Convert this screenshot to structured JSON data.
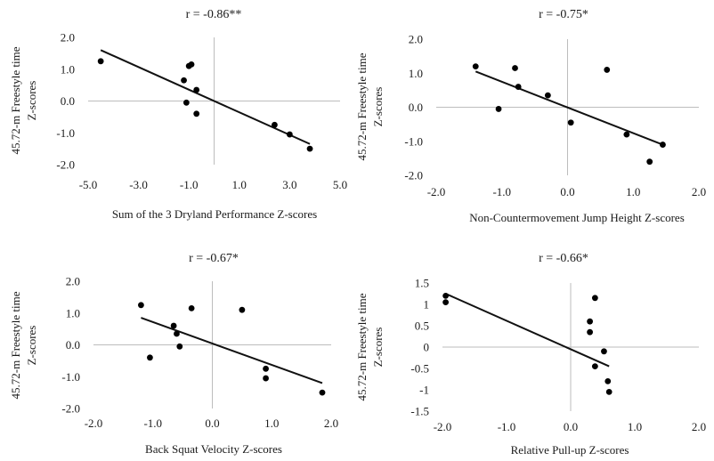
{
  "chart_data": [
    {
      "type": "scatter",
      "title": "r = -0.86**",
      "xlabel": "Sum of the 3 Dryland Performance Z-scores",
      "ylabel_lines": [
        "45.72-m Freestyle time",
        "Z-scores"
      ],
      "xlim": [
        -5.0,
        5.0
      ],
      "ylim": [
        -2.0,
        2.0
      ],
      "xticks": [
        "-5.0",
        "-3.0",
        "-1.0",
        "1.0",
        "3.0",
        "5.0"
      ],
      "xtick_values": [
        -5,
        -3,
        -1,
        1,
        3,
        5
      ],
      "yticks": [
        "2.0",
        "1.0",
        "0.0",
        "-1.0",
        "-2.0"
      ],
      "ytick_values": [
        2,
        1,
        0,
        -1,
        -2
      ],
      "points": [
        [
          -4.5,
          1.25
        ],
        [
          -1.2,
          0.65
        ],
        [
          -1.0,
          1.1
        ],
        [
          -0.9,
          1.15
        ],
        [
          -0.7,
          0.35
        ],
        [
          -1.1,
          -0.05
        ],
        [
          -0.7,
          -0.4
        ],
        [
          2.4,
          -0.75
        ],
        [
          3.0,
          -1.05
        ],
        [
          3.8,
          -1.5
        ]
      ],
      "trendline": [
        [
          -4.5,
          1.6
        ],
        [
          3.8,
          -1.35
        ]
      ],
      "grid": false
    },
    {
      "type": "scatter",
      "title": "r = -0.75*",
      "xlabel": "Non-Countermovement Jump Height Z-scores",
      "ylabel_lines": [
        "45.72-m Freestyle time",
        "Z-scores"
      ],
      "xlim": [
        -2.0,
        2.0
      ],
      "ylim": [
        -2.0,
        2.0
      ],
      "xticks": [
        "-2.0",
        "-1.0",
        "0.0",
        "1.0",
        "2.0"
      ],
      "xtick_values": [
        -2,
        -1,
        0,
        1,
        2
      ],
      "yticks": [
        "2.0",
        "1.0",
        "0.0",
        "-1.0",
        "-2.0"
      ],
      "ytick_values": [
        2,
        1,
        0,
        -1,
        -2
      ],
      "points": [
        [
          -1.4,
          1.2
        ],
        [
          -0.8,
          1.15
        ],
        [
          -0.75,
          0.6
        ],
        [
          -1.05,
          -0.05
        ],
        [
          -0.3,
          0.35
        ],
        [
          0.05,
          -0.45
        ],
        [
          0.6,
          1.1
        ],
        [
          0.9,
          -0.8
        ],
        [
          1.25,
          -1.6
        ],
        [
          1.45,
          -1.1
        ]
      ],
      "trendline": [
        [
          -1.4,
          1.05
        ],
        [
          1.45,
          -1.1
        ]
      ],
      "grid": false
    },
    {
      "type": "scatter",
      "title": "r = -0.67*",
      "xlabel": "Back Squat Velocity Z-scores",
      "ylabel_lines": [
        "45.72-m Freestyle time",
        "Z-scores"
      ],
      "xlim": [
        -2.0,
        2.0
      ],
      "ylim": [
        -2.0,
        2.0
      ],
      "xticks": [
        "-2.0",
        "-1.0",
        "0.0",
        "1.0",
        "2.0"
      ],
      "xtick_values": [
        -2,
        -1,
        0,
        1,
        2
      ],
      "yticks": [
        "2.0",
        "1.0",
        "0.0",
        "-1.0",
        "-2.0"
      ],
      "ytick_values": [
        2,
        1,
        0,
        -1,
        -2
      ],
      "points": [
        [
          -1.2,
          1.25
        ],
        [
          -0.65,
          0.6
        ],
        [
          -0.35,
          1.15
        ],
        [
          -0.6,
          0.35
        ],
        [
          -0.55,
          -0.05
        ],
        [
          -1.05,
          -0.4
        ],
        [
          0.5,
          1.1
        ],
        [
          0.9,
          -0.75
        ],
        [
          0.9,
          -1.05
        ],
        [
          1.85,
          -1.5
        ]
      ],
      "trendline": [
        [
          -1.2,
          0.85
        ],
        [
          1.85,
          -1.2
        ]
      ],
      "grid": false
    },
    {
      "type": "scatter",
      "title": "r = -0.66*",
      "xlabel": "Relative Pull-up Z-scores",
      "ylabel_lines": [
        "45.72-m Freestyle time",
        "Z-scores"
      ],
      "xlim": [
        -2.0,
        2.0
      ],
      "ylim": [
        -1.5,
        1.5
      ],
      "xticks": [
        "-2.0",
        "-1.0",
        "0.0",
        "1.0",
        "2.0"
      ],
      "xtick_values": [
        -2,
        -1,
        0,
        1,
        2
      ],
      "yticks": [
        "1.5",
        "1",
        "0.5",
        "0",
        "-0.5",
        "-1",
        "-1.5"
      ],
      "ytick_values": [
        1.5,
        1,
        0.5,
        0,
        -0.5,
        -1,
        -1.5
      ],
      "points": [
        [
          -1.95,
          1.2
        ],
        [
          -1.95,
          1.05
        ],
        [
          0.3,
          0.6
        ],
        [
          0.3,
          0.35
        ],
        [
          0.38,
          1.15
        ],
        [
          0.38,
          -0.45
        ],
        [
          0.52,
          -0.1
        ],
        [
          0.58,
          -0.8
        ],
        [
          0.6,
          -1.05
        ]
      ],
      "trendline": [
        [
          -1.95,
          1.25
        ],
        [
          0.6,
          -0.45
        ]
      ],
      "grid": false
    }
  ]
}
